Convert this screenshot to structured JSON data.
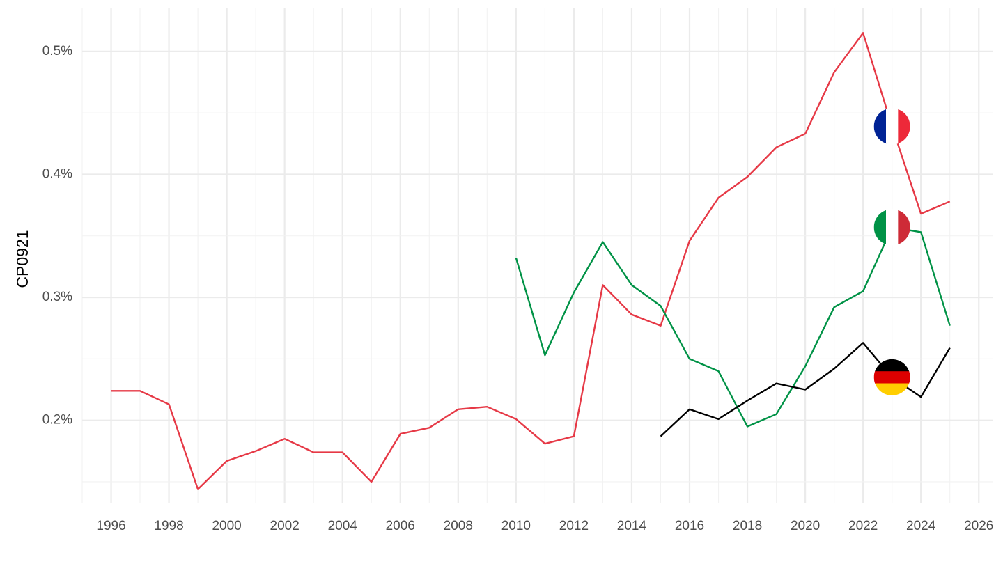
{
  "chart_data": {
    "type": "line",
    "title": "",
    "xlabel": "",
    "ylabel": "CP0921",
    "xlim": [
      1995,
      2026.5
    ],
    "ylim": [
      0.00133,
      0.00535
    ],
    "x_ticks": [
      1996,
      1998,
      2000,
      2002,
      2004,
      2006,
      2008,
      2010,
      2012,
      2014,
      2016,
      2018,
      2020,
      2022,
      2024,
      2026
    ],
    "y_ticks": [
      {
        "value": 0.002,
        "label": "0.2%"
      },
      {
        "value": 0.003,
        "label": "0.3%"
      },
      {
        "value": 0.004,
        "label": "0.4%"
      },
      {
        "value": 0.005,
        "label": "0.5%"
      }
    ],
    "grid": true,
    "legend": "flags at end of lines",
    "series": [
      {
        "country": "France",
        "color": "#e63946",
        "flag": "france-flag-icon",
        "flag_colors": [
          "#002395",
          "#ffffff",
          "#ed2939"
        ],
        "flag_at": {
          "x": 2023,
          "y": 0.00439
        },
        "x": [
          1996,
          1997,
          1998,
          1999,
          2000,
          2001,
          2002,
          2003,
          2004,
          2005,
          2006,
          2007,
          2008,
          2009,
          2010,
          2011,
          2012,
          2013,
          2014,
          2015,
          2016,
          2017,
          2018,
          2019,
          2020,
          2021,
          2022,
          2023,
          2024,
          2025
        ],
        "y": [
          0.00224,
          0.00224,
          0.00213,
          0.00144,
          0.00167,
          0.00175,
          0.00185,
          0.00174,
          0.00174,
          0.0015,
          0.00189,
          0.00194,
          0.00209,
          0.00211,
          0.00201,
          0.00181,
          0.00187,
          0.0031,
          0.00286,
          0.00277,
          0.00346,
          0.00381,
          0.00398,
          0.00422,
          0.00433,
          0.00483,
          0.00515,
          0.00439,
          0.00368,
          0.00378
        ]
      },
      {
        "country": "Italy",
        "color": "#009246",
        "flag": "italy-flag-icon",
        "flag_colors": [
          "#009246",
          "#ffffff",
          "#ce2b37"
        ],
        "flag_at": {
          "x": 2023,
          "y": 0.00357
        },
        "x": [
          2010,
          2011,
          2012,
          2013,
          2014,
          2015,
          2016,
          2017,
          2018,
          2019,
          2020,
          2021,
          2022,
          2023,
          2024,
          2025
        ],
        "y": [
          0.00332,
          0.00253,
          0.00304,
          0.00345,
          0.0031,
          0.00293,
          0.0025,
          0.0024,
          0.00195,
          0.00205,
          0.00244,
          0.00292,
          0.00305,
          0.00357,
          0.00353,
          0.00277
        ]
      },
      {
        "country": "Germany",
        "color": "#000000",
        "flag": "germany-flag-icon",
        "flag_colors": [
          "#000000",
          "#dd0000",
          "#ffce00"
        ],
        "flag_at": {
          "x": 2023,
          "y": 0.00235
        },
        "x": [
          2015,
          2016,
          2017,
          2018,
          2019,
          2020,
          2021,
          2022,
          2023,
          2024,
          2025
        ],
        "y": [
          0.00187,
          0.00209,
          0.00201,
          0.00216,
          0.0023,
          0.00225,
          0.00242,
          0.00263,
          0.00235,
          0.00219,
          0.00259
        ]
      }
    ]
  }
}
